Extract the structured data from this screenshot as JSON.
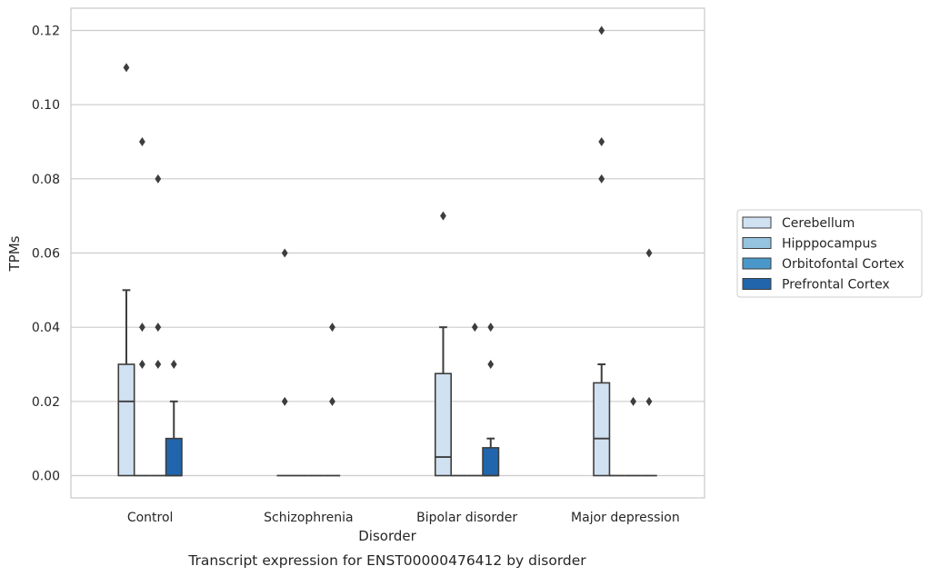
{
  "chart_data": {
    "type": "box",
    "title": "",
    "caption": "Transcript expression for ENST00000476412 by disorder",
    "xlabel": "Disorder",
    "ylabel": "TPMs",
    "ylim": [
      -0.006,
      0.126
    ],
    "yticks": [
      0.0,
      0.02,
      0.04,
      0.06,
      0.08,
      0.1,
      0.12
    ],
    "ytick_labels": [
      "0.00",
      "0.02",
      "0.04",
      "0.06",
      "0.08",
      "0.10",
      "0.12"
    ],
    "categories": [
      "Control",
      "Schizophrenia",
      "Bipolar disorder",
      "Major depression"
    ],
    "grid": "horizontal",
    "legend_position": "right",
    "series": [
      {
        "name": "Cerebellum",
        "color": "#d0e1f2",
        "boxes": [
          {
            "q1": 0.0,
            "median": 0.02,
            "q3": 0.03,
            "whisker_low": 0.0,
            "whisker_high": 0.05,
            "outliers": [
              0.11
            ]
          },
          {
            "q1": 0.0,
            "median": 0.0,
            "q3": 0.0,
            "whisker_low": 0.0,
            "whisker_high": 0.0,
            "outliers": [
              0.02,
              0.06
            ]
          },
          {
            "q1": 0.0,
            "median": 0.005,
            "q3": 0.0275,
            "whisker_low": 0.0,
            "whisker_high": 0.04,
            "outliers": [
              0.07
            ]
          },
          {
            "q1": 0.0,
            "median": 0.01,
            "q3": 0.025,
            "whisker_low": 0.0,
            "whisker_high": 0.03,
            "outliers": [
              0.08,
              0.09,
              0.12
            ]
          }
        ]
      },
      {
        "name": "Hipppocampus",
        "color": "#94c4df",
        "boxes": [
          {
            "q1": 0.0,
            "median": 0.0,
            "q3": 0.0,
            "whisker_low": 0.0,
            "whisker_high": 0.0,
            "outliers": [
              0.03,
              0.04,
              0.09
            ]
          },
          {
            "q1": 0.0,
            "median": 0.0,
            "q3": 0.0,
            "whisker_low": 0.0,
            "whisker_high": 0.0,
            "outliers": []
          },
          {
            "q1": 0.0,
            "median": 0.0,
            "q3": 0.0,
            "whisker_low": 0.0,
            "whisker_high": 0.0,
            "outliers": []
          },
          {
            "q1": 0.0,
            "median": 0.0,
            "q3": 0.0,
            "whisker_low": 0.0,
            "whisker_high": 0.0,
            "outliers": []
          }
        ]
      },
      {
        "name": "Orbitofontal Cortex",
        "color": "#4a98c9",
        "boxes": [
          {
            "q1": 0.0,
            "median": 0.0,
            "q3": 0.0,
            "whisker_low": 0.0,
            "whisker_high": 0.0,
            "outliers": [
              0.03,
              0.04,
              0.08
            ]
          },
          {
            "q1": 0.0,
            "median": 0.0,
            "q3": 0.0,
            "whisker_low": 0.0,
            "whisker_high": 0.0,
            "outliers": []
          },
          {
            "q1": 0.0,
            "median": 0.0,
            "q3": 0.0,
            "whisker_low": 0.0,
            "whisker_high": 0.0,
            "outliers": [
              0.04
            ]
          },
          {
            "q1": 0.0,
            "median": 0.0,
            "q3": 0.0,
            "whisker_low": 0.0,
            "whisker_high": 0.0,
            "outliers": [
              0.02
            ]
          }
        ]
      },
      {
        "name": "Prefrontal Cortex",
        "color": "#2166ac",
        "boxes": [
          {
            "q1": 0.0,
            "median": 0.0,
            "q3": 0.01,
            "whisker_low": 0.0,
            "whisker_high": 0.02,
            "outliers": [
              0.03
            ]
          },
          {
            "q1": 0.0,
            "median": 0.0,
            "q3": 0.0,
            "whisker_low": 0.0,
            "whisker_high": 0.0,
            "outliers": [
              0.02,
              0.04
            ]
          },
          {
            "q1": 0.0,
            "median": 0.0,
            "q3": 0.0075,
            "whisker_low": 0.0,
            "whisker_high": 0.01,
            "outliers": [
              0.03,
              0.04
            ]
          },
          {
            "q1": 0.0,
            "median": 0.0,
            "q3": 0.0,
            "whisker_low": 0.0,
            "whisker_high": 0.0,
            "outliers": [
              0.02,
              0.06
            ]
          }
        ]
      }
    ]
  }
}
